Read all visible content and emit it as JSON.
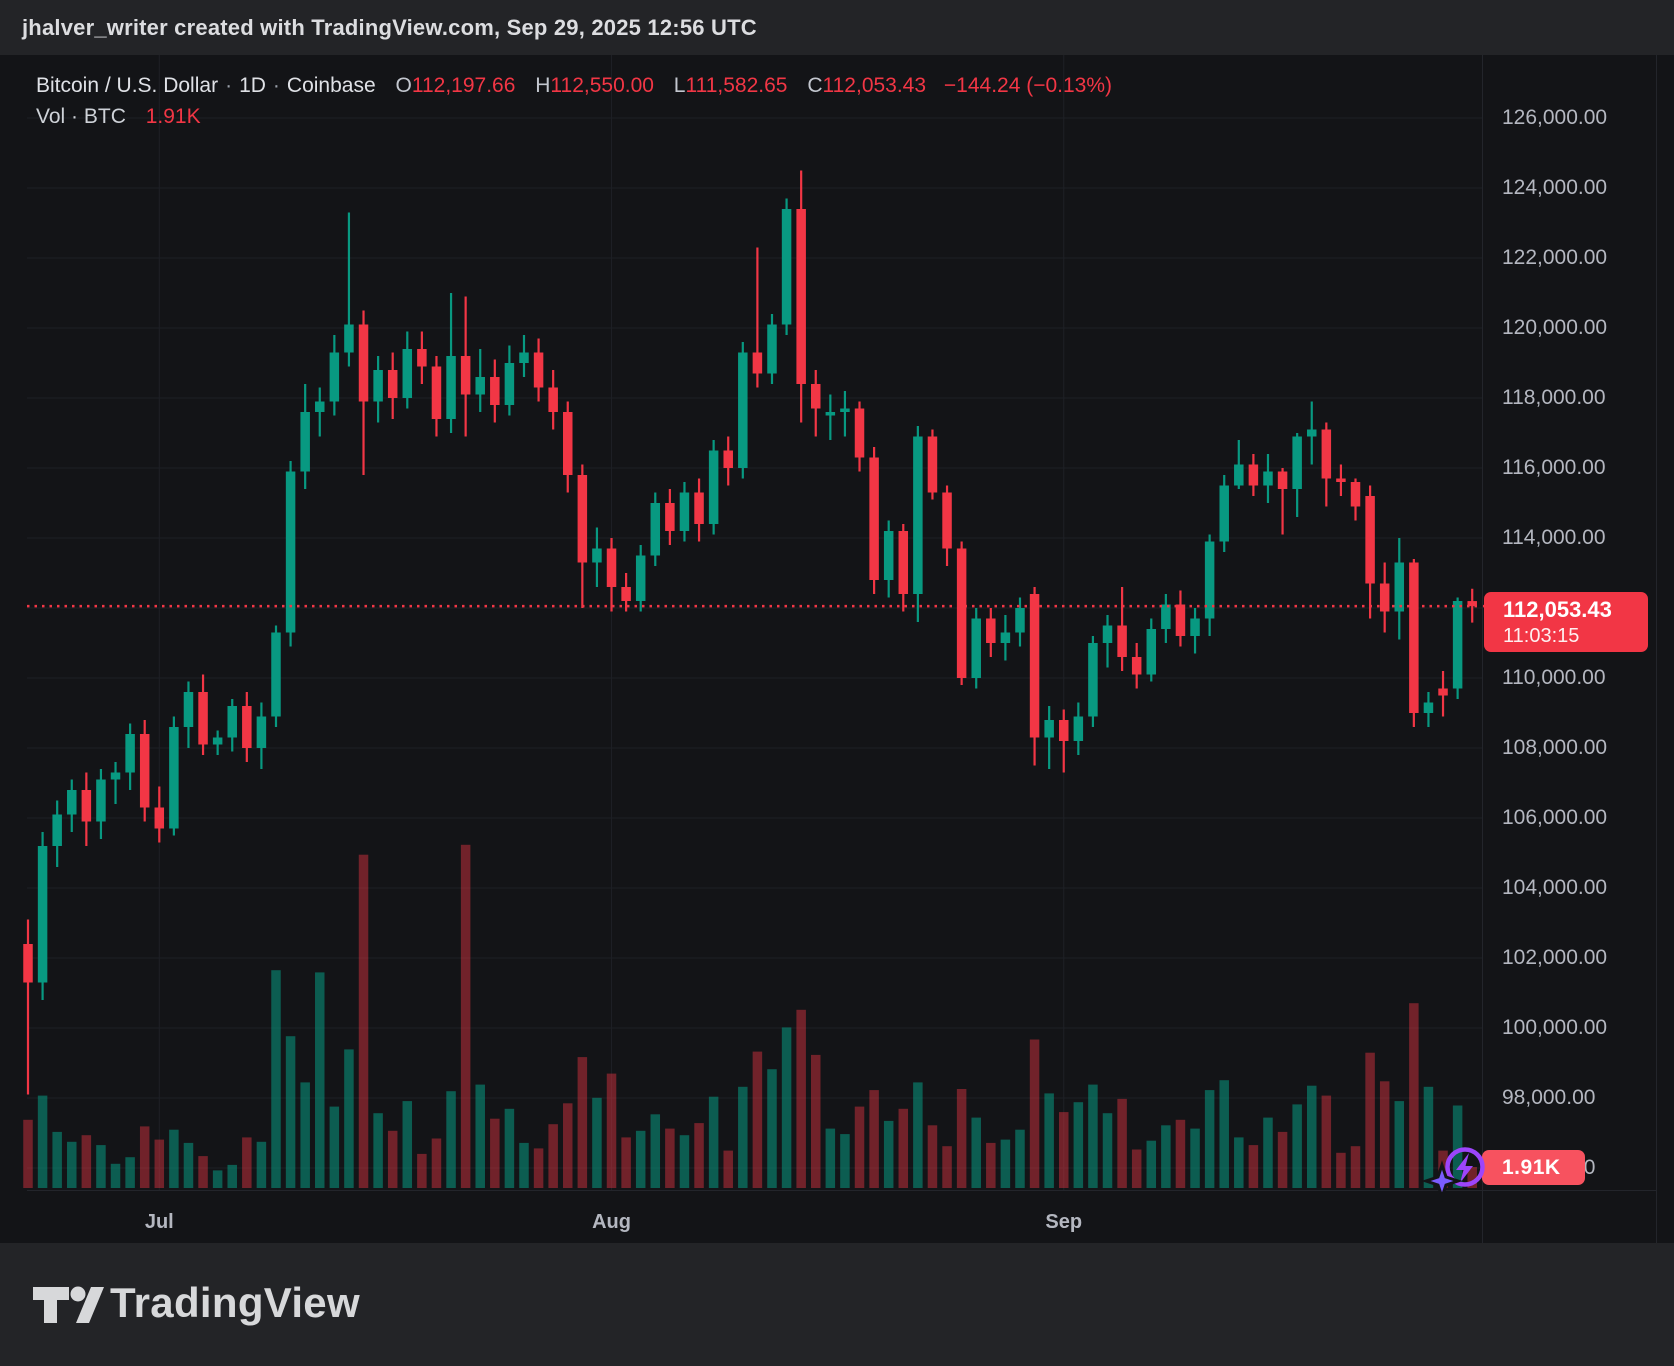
{
  "attribution": "jhalver_writer created with TradingView.com, Sep 29, 2025 12:56 UTC",
  "legend": {
    "title": "Bitcoin / U.S. Dollar",
    "separator": "·",
    "interval": "1D",
    "exchange": "Coinbase",
    "open_label": "O",
    "open": "112,197.66",
    "high_label": "H",
    "high": "112,550.00",
    "low_label": "L",
    "low": "111,582.65",
    "close_label": "C",
    "close": "112,053.43",
    "change": "−144.24 (−0.13%)",
    "volume_label": "Vol · BTC",
    "volume_value": "1.91K"
  },
  "price_scale": {
    "labels": [
      {
        "price": 126000,
        "text": "126,000.00"
      },
      {
        "price": 124000,
        "text": "124,000.00"
      },
      {
        "price": 122000,
        "text": "122,000.00"
      },
      {
        "price": 120000,
        "text": "120,000.00"
      },
      {
        "price": 118000,
        "text": "118,000.00"
      },
      {
        "price": 116000,
        "text": "116,000.00"
      },
      {
        "price": 114000,
        "text": "114,000.00"
      },
      {
        "price": 110000,
        "text": "110,000.00"
      },
      {
        "price": 108000,
        "text": "108,000.00"
      },
      {
        "price": 106000,
        "text": "106,000.00"
      },
      {
        "price": 104000,
        "text": "104,000.00"
      },
      {
        "price": 102000,
        "text": "102,000.00"
      },
      {
        "price": 100000,
        "text": "100,000.00"
      },
      {
        "price": 98000,
        "text": "98,000.00"
      },
      {
        "price": 96000,
        "text": "96,000.00"
      }
    ],
    "current_badge": {
      "price": 112053.43,
      "price_text": "112,053.43",
      "countdown": "11:03:15"
    }
  },
  "time_scale": {
    "months": [
      {
        "label": "Jul",
        "candle_index": 9
      },
      {
        "label": "Aug",
        "candle_index": 40
      },
      {
        "label": "Sep",
        "candle_index": 71
      }
    ]
  },
  "volume_badge": {
    "text": "1.91K",
    "value_kbtc": 1.91
  },
  "footer": {
    "brand": "TradingView"
  },
  "colors": {
    "up": "#089981",
    "down": "#f23645",
    "volume_up": "rgba(8,153,129,0.55)",
    "volume_down": "rgba(242,54,69,0.42)",
    "current_price_line": "#f23645",
    "badge": "#f23645",
    "volume_badge": "#f7525f",
    "boost_purple": "#9d45fb",
    "boost_star": "#7a5cff",
    "grid": "#1e2026",
    "axis_text": "#b4b7c0",
    "plot_bg": "#131417",
    "outer_bg": "#232427"
  },
  "chart_data": {
    "type": "candlestick+volume",
    "title": "Bitcoin / U.S. Dollar · 1D · Coinbase",
    "symbol": "BTCUSD",
    "interval": "1D",
    "legend_position": "top-left",
    "grid": true,
    "price_axis": {
      "visible_min": 95500,
      "visible_max": 126700,
      "tick_step": 2000
    },
    "volume_axis_kbtc": {
      "current": 1.91,
      "max_spike": 31.2
    },
    "current_price": 112053.43,
    "columns": [
      "date",
      "open",
      "high",
      "low",
      "close",
      "volume_kbtc"
    ],
    "candles": [
      [
        "2025-06-22",
        102400,
        103100,
        98100,
        101300,
        6.2
      ],
      [
        "2025-06-23",
        101300,
        105600,
        100800,
        105200,
        8.4
      ],
      [
        "2025-06-24",
        105200,
        106500,
        104600,
        106100,
        5.1
      ],
      [
        "2025-06-25",
        106100,
        107100,
        105600,
        106800,
        4.2
      ],
      [
        "2025-06-26",
        106800,
        107300,
        105200,
        105900,
        4.8
      ],
      [
        "2025-06-27",
        105900,
        107400,
        105400,
        107100,
        3.9
      ],
      [
        "2025-06-28",
        107100,
        107600,
        106400,
        107300,
        2.2
      ],
      [
        "2025-06-29",
        107300,
        108700,
        106800,
        108400,
        2.8
      ],
      [
        "2025-06-30",
        108400,
        108800,
        105900,
        106300,
        5.6
      ],
      [
        "2025-07-01",
        106300,
        106900,
        105300,
        105700,
        4.4
      ],
      [
        "2025-07-02",
        105700,
        108900,
        105500,
        108600,
        5.3
      ],
      [
        "2025-07-03",
        108600,
        109900,
        108000,
        109600,
        4.1
      ],
      [
        "2025-07-04",
        109600,
        110100,
        107800,
        108100,
        2.9
      ],
      [
        "2025-07-05",
        108100,
        108500,
        107800,
        108300,
        1.6
      ],
      [
        "2025-07-06",
        108300,
        109400,
        107900,
        109200,
        2.1
      ],
      [
        "2025-07-07",
        109200,
        109600,
        107600,
        108000,
        4.6
      ],
      [
        "2025-07-08",
        108000,
        109300,
        107400,
        108900,
        4.2
      ],
      [
        "2025-07-09",
        108900,
        111500,
        108600,
        111300,
        19.8
      ],
      [
        "2025-07-10",
        111300,
        116200,
        110900,
        115900,
        13.8
      ],
      [
        "2025-07-11",
        115900,
        118400,
        115400,
        117600,
        9.6
      ],
      [
        "2025-07-12",
        117600,
        118300,
        116900,
        117900,
        19.6
      ],
      [
        "2025-07-13",
        117900,
        119800,
        117500,
        119300,
        7.4
      ],
      [
        "2025-07-14",
        119300,
        123300,
        118900,
        120100,
        12.6
      ],
      [
        "2025-07-15",
        120100,
        120500,
        115800,
        117900,
        30.3
      ],
      [
        "2025-07-16",
        117900,
        119200,
        117300,
        118800,
        6.8
      ],
      [
        "2025-07-17",
        118800,
        119300,
        117400,
        118000,
        5.2
      ],
      [
        "2025-07-18",
        118000,
        119900,
        117700,
        119400,
        7.9
      ],
      [
        "2025-07-19",
        119400,
        119900,
        118400,
        118900,
        3.1
      ],
      [
        "2025-07-20",
        118900,
        119200,
        116900,
        117400,
        4.5
      ],
      [
        "2025-07-21",
        117400,
        121000,
        117000,
        119200,
        8.8
      ],
      [
        "2025-07-22",
        119200,
        120900,
        116900,
        118100,
        31.2
      ],
      [
        "2025-07-23",
        118100,
        119400,
        117600,
        118600,
        9.4
      ],
      [
        "2025-07-24",
        118600,
        119100,
        117300,
        117800,
        6.3
      ],
      [
        "2025-07-25",
        117800,
        119500,
        117500,
        119000,
        7.2
      ],
      [
        "2025-07-26",
        119000,
        119800,
        118600,
        119300,
        4.1
      ],
      [
        "2025-07-27",
        119300,
        119700,
        117900,
        118300,
        3.6
      ],
      [
        "2025-07-28",
        118300,
        118800,
        117100,
        117600,
        5.8
      ],
      [
        "2025-07-29",
        117600,
        117900,
        115300,
        115800,
        7.7
      ],
      [
        "2025-07-30",
        115800,
        116100,
        112000,
        113300,
        11.9
      ],
      [
        "2025-07-31",
        113300,
        114300,
        112600,
        113700,
        8.2
      ],
      [
        "2025-08-01",
        113700,
        114000,
        111900,
        112600,
        10.4
      ],
      [
        "2025-08-02",
        112600,
        113000,
        111900,
        112200,
        4.6
      ],
      [
        "2025-08-03",
        112200,
        113800,
        111900,
        113500,
        5.2
      ],
      [
        "2025-08-04",
        113500,
        115300,
        113200,
        115000,
        6.7
      ],
      [
        "2025-08-05",
        115000,
        115400,
        113800,
        114200,
        5.4
      ],
      [
        "2025-08-06",
        114200,
        115600,
        113900,
        115300,
        4.8
      ],
      [
        "2025-08-07",
        115300,
        115700,
        113900,
        114400,
        5.9
      ],
      [
        "2025-08-08",
        114400,
        116800,
        114100,
        116500,
        8.3
      ],
      [
        "2025-08-09",
        116500,
        116900,
        115500,
        116000,
        3.4
      ],
      [
        "2025-08-10",
        116000,
        119600,
        115700,
        119300,
        9.2
      ],
      [
        "2025-08-11",
        119300,
        122300,
        118300,
        118700,
        12.4
      ],
      [
        "2025-08-12",
        118700,
        120400,
        118400,
        120100,
        10.8
      ],
      [
        "2025-08-13",
        120100,
        123700,
        119800,
        123400,
        14.6
      ],
      [
        "2025-08-14",
        123400,
        124500,
        117300,
        118400,
        16.2
      ],
      [
        "2025-08-15",
        118400,
        118800,
        116900,
        117700,
        12.1
      ],
      [
        "2025-08-16",
        117500,
        118100,
        116800,
        117600,
        5.4
      ],
      [
        "2025-08-17",
        117600,
        118200,
        116900,
        117700,
        4.9
      ],
      [
        "2025-08-18",
        117700,
        117900,
        115900,
        116300,
        7.4
      ],
      [
        "2025-08-19",
        116300,
        116600,
        112400,
        112800,
        8.9
      ],
      [
        "2025-08-20",
        112800,
        114500,
        112300,
        114200,
        6.1
      ],
      [
        "2025-08-21",
        114200,
        114400,
        111900,
        112400,
        7.2
      ],
      [
        "2025-08-22",
        112400,
        117200,
        111600,
        116900,
        9.6
      ],
      [
        "2025-08-23",
        116900,
        117100,
        115100,
        115300,
        5.7
      ],
      [
        "2025-08-24",
        115300,
        115500,
        113200,
        113700,
        3.8
      ],
      [
        "2025-08-25",
        113700,
        113900,
        109800,
        110000,
        9.0
      ],
      [
        "2025-08-26",
        110000,
        112000,
        109700,
        111700,
        6.4
      ],
      [
        "2025-08-27",
        111700,
        112000,
        110600,
        111000,
        4.1
      ],
      [
        "2025-08-28",
        111000,
        111800,
        110500,
        111300,
        4.4
      ],
      [
        "2025-08-29",
        111300,
        112300,
        110900,
        112000,
        5.3
      ],
      [
        "2025-08-30",
        112400,
        112600,
        107500,
        108300,
        13.5
      ],
      [
        "2025-08-31",
        108300,
        109200,
        107400,
        108800,
        8.6
      ],
      [
        "2025-09-01",
        108800,
        109100,
        107300,
        108200,
        6.9
      ],
      [
        "2025-09-02",
        108200,
        109300,
        107800,
        108900,
        7.8
      ],
      [
        "2025-09-03",
        108900,
        111200,
        108600,
        111000,
        9.4
      ],
      [
        "2025-09-04",
        111000,
        111800,
        110300,
        111500,
        6.8
      ],
      [
        "2025-09-05",
        111500,
        112600,
        110200,
        110600,
        8.1
      ],
      [
        "2025-09-06",
        110600,
        111000,
        109700,
        110100,
        3.5
      ],
      [
        "2025-09-07",
        110100,
        111700,
        109900,
        111400,
        4.3
      ],
      [
        "2025-09-08",
        111400,
        112400,
        111000,
        112100,
        5.7
      ],
      [
        "2025-09-09",
        112100,
        112500,
        110900,
        111200,
        6.2
      ],
      [
        "2025-09-10",
        111200,
        112000,
        110700,
        111700,
        5.4
      ],
      [
        "2025-09-11",
        111700,
        114100,
        111200,
        113900,
        8.9
      ],
      [
        "2025-09-12",
        113900,
        115800,
        113600,
        115500,
        9.8
      ],
      [
        "2025-09-13",
        115500,
        116800,
        115400,
        116100,
        4.6
      ],
      [
        "2025-09-14",
        116100,
        116400,
        115200,
        115500,
        3.9
      ],
      [
        "2025-09-15",
        115500,
        116400,
        115000,
        115900,
        6.4
      ],
      [
        "2025-09-16",
        115900,
        116000,
        114100,
        115400,
        5.1
      ],
      [
        "2025-09-17",
        115400,
        117000,
        114600,
        116900,
        7.6
      ],
      [
        "2025-09-18",
        116900,
        117900,
        116100,
        117100,
        9.3
      ],
      [
        "2025-09-19",
        117100,
        117300,
        114900,
        115700,
        8.4
      ],
      [
        "2025-09-20",
        115700,
        116100,
        115200,
        115600,
        3.2
      ],
      [
        "2025-09-21",
        115600,
        115700,
        114500,
        114900,
        3.8
      ],
      [
        "2025-09-22",
        115200,
        115500,
        111700,
        112700,
        12.3
      ],
      [
        "2025-09-23",
        112700,
        113300,
        111300,
        111900,
        9.7
      ],
      [
        "2025-09-24",
        111900,
        114000,
        111100,
        113300,
        7.9
      ],
      [
        "2025-09-25",
        113300,
        113400,
        108600,
        109000,
        16.8
      ],
      [
        "2025-09-26",
        109000,
        109600,
        108600,
        109300,
        9.2
      ],
      [
        "2025-09-27",
        109700,
        110200,
        108900,
        109500,
        3.4
      ],
      [
        "2025-09-28",
        109700,
        112300,
        109400,
        112200,
        7.5
      ],
      [
        "2025-09-29",
        112198,
        112550,
        111583,
        112053,
        1.91
      ]
    ]
  }
}
